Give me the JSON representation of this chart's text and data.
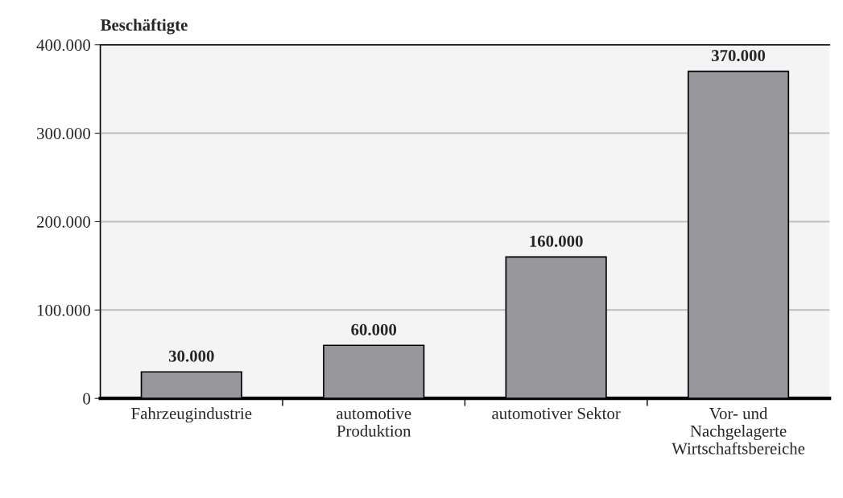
{
  "chart_data": {
    "type": "bar",
    "ylabel": "Beschäftigte",
    "categories": [
      "Fahrzeugindustrie",
      "automotive\nProduktion",
      "automotiver Sektor",
      "Vor- und\nNachgelagerte\nWirtschaftsbereiche"
    ],
    "values": [
      30000,
      60000,
      160000,
      370000
    ],
    "value_labels": [
      "30.000",
      "60.000",
      "160.000",
      "370.000"
    ],
    "color": "#98989c",
    "ylim": [
      0,
      400000
    ],
    "yticks": [
      {
        "value": 0,
        "label": "0"
      },
      {
        "value": 100000,
        "label": "100.000"
      },
      {
        "value": 200000,
        "label": "200.000"
      },
      {
        "value": 300000,
        "label": "300.000"
      },
      {
        "value": 400000,
        "label": "400.000"
      }
    ],
    "grid": "y"
  }
}
